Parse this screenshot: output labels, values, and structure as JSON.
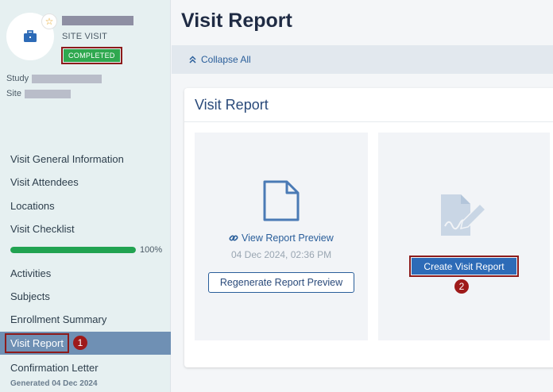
{
  "visit": {
    "type_label": "SITE VISIT",
    "status": "COMPLETED",
    "study_label": "Study",
    "site_label": "Site"
  },
  "icons": {
    "avatar": "briefcase-icon",
    "favorite": "star-icon",
    "collapse": "double-chevron-up-icon",
    "link": "link-icon",
    "document": "document-icon",
    "signature": "signature-icon"
  },
  "sidebar": {
    "items": [
      {
        "label": "Visit General Information"
      },
      {
        "label": "Visit Attendees"
      },
      {
        "label": "Locations"
      },
      {
        "label": "Visit Checklist"
      },
      {
        "label": "Activities"
      },
      {
        "label": "Subjects"
      },
      {
        "label": "Enrollment Summary"
      },
      {
        "label": "Visit Report"
      },
      {
        "label": "Confirmation Letter"
      }
    ],
    "checklist_progress": 1.0,
    "checklist_progress_label": "100%",
    "generated_note": "Generated 04 Dec 2024"
  },
  "main": {
    "page_title": "Visit Report",
    "collapse_all": "Collapse All",
    "card_title": "Visit Report",
    "preview_link": "View Report Preview",
    "preview_date": "04 Dec 2024, 02:36 PM",
    "regenerate_button": "Regenerate Report Preview",
    "create_button": "Create Visit Report"
  },
  "callouts": [
    "1",
    "2"
  ],
  "colors": {
    "accent": "#2d6bb7",
    "status_green": "#2fa84f",
    "callout_red": "#9e1a1a",
    "active_nav": "#6f90b4"
  }
}
